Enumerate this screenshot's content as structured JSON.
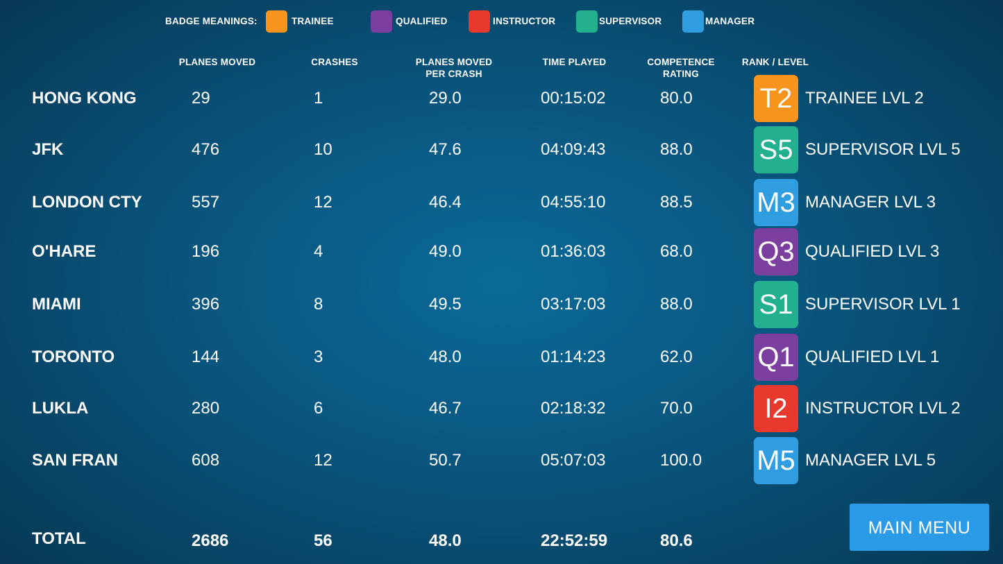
{
  "legend": {
    "title": "BADGE MEANINGS:",
    "items": [
      {
        "label": "TRAINEE",
        "color": "#f7941d"
      },
      {
        "label": "QUALIFIED",
        "color": "#7b3fa0"
      },
      {
        "label": "INSTRUCTOR",
        "color": "#e8392f"
      },
      {
        "label": "SUPERVISOR",
        "color": "#22b08f"
      },
      {
        "label": "MANAGER",
        "color": "#2f9de0"
      }
    ]
  },
  "headers": {
    "planes_moved": "PLANES MOVED",
    "crashes": "CRASHES",
    "per_crash_line1": "PLANES MOVED",
    "per_crash_line2": "PER CRASH",
    "time_played": "TIME PLAYED",
    "competence_line1": "COMPETENCE",
    "competence_line2": "RATING",
    "rank": "RANK / LEVEL"
  },
  "rows": [
    {
      "airport": "HONG KONG",
      "planes": "29",
      "crashes": "1",
      "per_crash": "29.0",
      "time": "00:15:02",
      "rating": "80.0",
      "badge": "T2",
      "badge_color": "#f7941d",
      "rank": "TRAINEE LVL 2"
    },
    {
      "airport": "JFK",
      "planes": "476",
      "crashes": "10",
      "per_crash": "47.6",
      "time": "04:09:43",
      "rating": "88.0",
      "badge": "S5",
      "badge_color": "#22b08f",
      "rank": "SUPERVISOR LVL 5"
    },
    {
      "airport": "LONDON CTY",
      "planes": "557",
      "crashes": "12",
      "per_crash": "46.4",
      "time": "04:55:10",
      "rating": "88.5",
      "badge": "M3",
      "badge_color": "#2f9de0",
      "rank": "MANAGER LVL 3"
    },
    {
      "airport": "O'HARE",
      "planes": "196",
      "crashes": "4",
      "per_crash": "49.0",
      "time": "01:36:03",
      "rating": "68.0",
      "badge": "Q3",
      "badge_color": "#7b3fa0",
      "rank": "QUALIFIED LVL 3"
    },
    {
      "airport": "MIAMI",
      "planes": "396",
      "crashes": "8",
      "per_crash": "49.5",
      "time": "03:17:03",
      "rating": "88.0",
      "badge": "S1",
      "badge_color": "#22b08f",
      "rank": "SUPERVISOR LVL 1"
    },
    {
      "airport": "TORONTO",
      "planes": "144",
      "crashes": "3",
      "per_crash": "48.0",
      "time": "01:14:23",
      "rating": "62.0",
      "badge": "Q1",
      "badge_color": "#7b3fa0",
      "rank": "QUALIFIED LVL 1"
    },
    {
      "airport": "LUKLA",
      "planes": "280",
      "crashes": "6",
      "per_crash": "46.7",
      "time": "02:18:32",
      "rating": "70.0",
      "badge": "I2",
      "badge_color": "#e8392f",
      "rank": "INSTRUCTOR LVL 2"
    },
    {
      "airport": "SAN FRAN",
      "planes": "608",
      "crashes": "12",
      "per_crash": "50.7",
      "time": "05:07:03",
      "rating": "100.0",
      "badge": "M5",
      "badge_color": "#2f9de0",
      "rank": "MANAGER LVL 5"
    }
  ],
  "total": {
    "label": "TOTAL",
    "planes": "2686",
    "crashes": "56",
    "per_crash": "48.0",
    "time": "22:52:59",
    "rating": "80.6"
  },
  "main_menu_label": "MAIN MENU"
}
